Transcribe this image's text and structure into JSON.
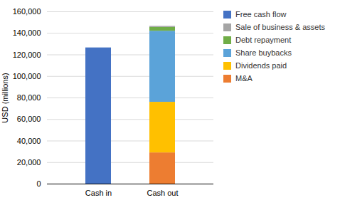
{
  "chart_data": {
    "type": "bar",
    "stacked": true,
    "categories": [
      "Cash in",
      "Cash out"
    ],
    "series": [
      {
        "name": "M&A",
        "color": "#ED7D31",
        "values": [
          0,
          29000
        ]
      },
      {
        "name": "Dividends paid",
        "color": "#FFC000",
        "values": [
          0,
          47000
        ]
      },
      {
        "name": "Share buybacks",
        "color": "#5BA3D9",
        "values": [
          0,
          66000
        ]
      },
      {
        "name": "Debt repayment",
        "color": "#70AD47",
        "values": [
          0,
          3500
        ]
      },
      {
        "name": "Sale of business & assets",
        "color": "#A5A5A5",
        "values": [
          0,
          1000
        ]
      },
      {
        "name": "Free cash flow",
        "color": "#4472C4",
        "values": [
          126500,
          0
        ]
      }
    ],
    "ylabel": "USD (millions)",
    "ylim": [
      0,
      160000
    ],
    "yticks": [
      0,
      {
        "value": 20000,
        "label": "20,000"
      },
      {
        "value": 40000,
        "label": "40,000"
      },
      {
        "value": 60000,
        "label": "60,000"
      },
      {
        "value": 80000,
        "label": "80,000"
      },
      {
        "value": 100000,
        "label": "100,000"
      },
      {
        "value": 120000,
        "label": "120,000"
      },
      {
        "value": 140000,
        "label": "140,000"
      },
      {
        "value": 160000,
        "label": "160,000"
      }
    ],
    "grid": true,
    "legend": "right"
  }
}
